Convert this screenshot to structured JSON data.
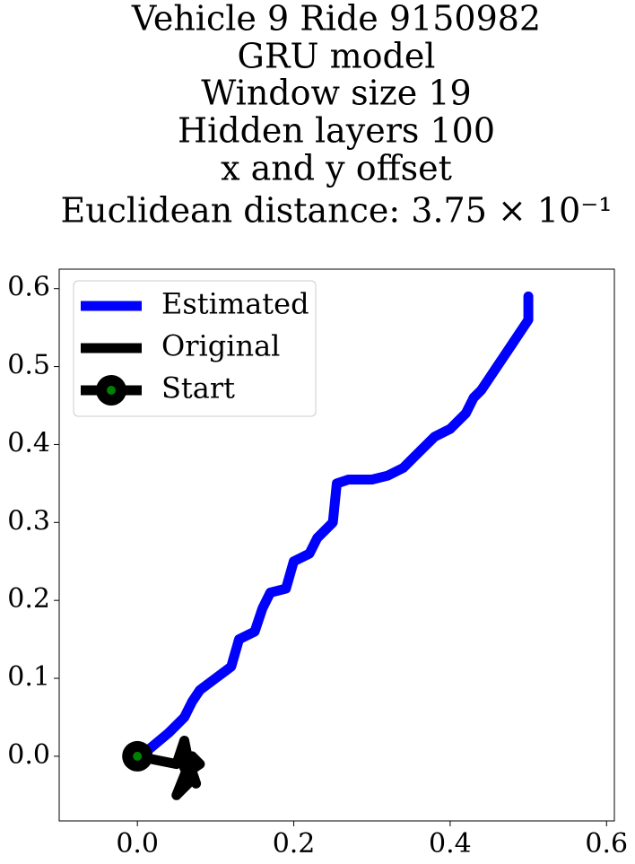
{
  "chart_data": {
    "type": "line",
    "title": [
      "Vehicle 9 Ride 9150982",
      "GRU model",
      "Window size 19",
      "Hidden layers 100",
      "x and y offset",
      "Euclidean distance: 3.75 × 10⁻¹"
    ],
    "series": [
      {
        "name": "Estimated",
        "color": "#0000ff",
        "x": [
          0.0,
          0.01,
          0.04,
          0.06,
          0.07,
          0.08,
          0.1,
          0.12,
          0.13,
          0.15,
          0.16,
          0.17,
          0.19,
          0.2,
          0.22,
          0.23,
          0.25,
          0.255,
          0.27,
          0.3,
          0.32,
          0.34,
          0.36,
          0.38,
          0.4,
          0.42,
          0.43,
          0.44,
          0.46,
          0.48,
          0.5,
          0.5
        ],
        "values": [
          0.0,
          0.005,
          0.03,
          0.05,
          0.07,
          0.085,
          0.1,
          0.115,
          0.15,
          0.16,
          0.19,
          0.21,
          0.215,
          0.25,
          0.26,
          0.28,
          0.3,
          0.35,
          0.355,
          0.355,
          0.36,
          0.37,
          0.39,
          0.41,
          0.42,
          0.44,
          0.46,
          0.47,
          0.5,
          0.53,
          0.56,
          0.59
        ]
      },
      {
        "name": "Original",
        "color": "#000000",
        "x": [
          0.0,
          0.05,
          0.06,
          0.07,
          0.06,
          0.05,
          0.07,
          0.08,
          0.065,
          0.06,
          0.075,
          0.06
        ],
        "values": [
          0.0,
          -0.01,
          0.02,
          -0.03,
          -0.04,
          -0.05,
          0.0,
          -0.01,
          -0.02,
          0.01,
          -0.035,
          -0.015
        ]
      },
      {
        "name": "Start",
        "color": "#000000",
        "marker_color": "#008000",
        "x": [
          0.0
        ],
        "values": [
          0.0
        ]
      }
    ],
    "xlim": [
      -0.1,
      0.61
    ],
    "ylim": [
      -0.083,
      0.625
    ],
    "xticks": [
      {
        "value": 0,
        "label": "0.0"
      },
      {
        "value": 0.2,
        "label": "0.2"
      },
      {
        "value": 0.4,
        "label": "0.4"
      },
      {
        "value": 0.6,
        "label": "0.6"
      }
    ],
    "yticks": [
      {
        "value": 0,
        "label": "0.0"
      },
      {
        "value": 0.1,
        "label": "0.1"
      },
      {
        "value": 0.2,
        "label": "0.2"
      },
      {
        "value": 0.3,
        "label": "0.3"
      },
      {
        "value": 0.4,
        "label": "0.4"
      },
      {
        "value": 0.5,
        "label": "0.5"
      },
      {
        "value": 0.6,
        "label": "0.6"
      }
    ],
    "legend": "upper left"
  }
}
